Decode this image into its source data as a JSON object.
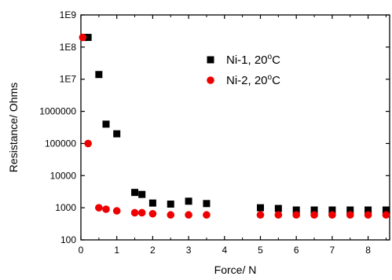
{
  "chart_data": {
    "type": "scatter",
    "title": "",
    "xlabel": "Force/ N",
    "ylabel": "Resistance/ Ohms",
    "xlim": [
      0,
      8.6
    ],
    "ylim": [
      100,
      1000000000
    ],
    "y_scale": "log",
    "grid": false,
    "legend_position": "top-right",
    "x_ticks": [
      {
        "value": 0,
        "label": "0"
      },
      {
        "value": 1,
        "label": "1"
      },
      {
        "value": 2,
        "label": "2"
      },
      {
        "value": 3,
        "label": "3"
      },
      {
        "value": 4,
        "label": "4"
      },
      {
        "value": 5,
        "label": "5"
      },
      {
        "value": 6,
        "label": "6"
      },
      {
        "value": 7,
        "label": "7"
      },
      {
        "value": 8,
        "label": "8"
      }
    ],
    "y_ticks": [
      {
        "value": 100,
        "label": "100"
      },
      {
        "value": 1000,
        "label": "1000"
      },
      {
        "value": 10000,
        "label": "10000"
      },
      {
        "value": 100000,
        "label": "100000"
      },
      {
        "value": 1000000,
        "label": "1000000"
      },
      {
        "value": 10000000,
        "label": "1E7"
      },
      {
        "value": 100000000,
        "label": "1E8"
      },
      {
        "value": 1000000000,
        "label": "1E9"
      }
    ],
    "series": [
      {
        "name": "Ni-1, 20°C",
        "marker": "square",
        "color": "#000000",
        "points": [
          {
            "x": 0.1,
            "y": 200000000
          },
          {
            "x": 0.2,
            "y": 200000000
          },
          {
            "x": 0.5,
            "y": 14000000
          },
          {
            "x": 0.7,
            "y": 400000
          },
          {
            "x": 1.0,
            "y": 200000
          },
          {
            "x": 1.5,
            "y": 3000
          },
          {
            "x": 1.7,
            "y": 2600
          },
          {
            "x": 2.0,
            "y": 1400
          },
          {
            "x": 2.5,
            "y": 1300
          },
          {
            "x": 3.0,
            "y": 1600
          },
          {
            "x": 3.5,
            "y": 1350
          },
          {
            "x": 5.0,
            "y": 1000
          },
          {
            "x": 5.5,
            "y": 950
          },
          {
            "x": 6.0,
            "y": 850
          },
          {
            "x": 6.5,
            "y": 850
          },
          {
            "x": 7.0,
            "y": 850
          },
          {
            "x": 7.5,
            "y": 850
          },
          {
            "x": 8.0,
            "y": 850
          },
          {
            "x": 8.5,
            "y": 850
          }
        ]
      },
      {
        "name": "Ni-2, 20°C",
        "marker": "circle",
        "color": "#ee0000",
        "points": [
          {
            "x": 0.05,
            "y": 200000000
          },
          {
            "x": 0.2,
            "y": 100000
          },
          {
            "x": 0.5,
            "y": 1000
          },
          {
            "x": 0.7,
            "y": 900
          },
          {
            "x": 1.0,
            "y": 800
          },
          {
            "x": 1.5,
            "y": 700
          },
          {
            "x": 1.7,
            "y": 700
          },
          {
            "x": 2.0,
            "y": 650
          },
          {
            "x": 2.5,
            "y": 600
          },
          {
            "x": 3.0,
            "y": 600
          },
          {
            "x": 3.5,
            "y": 600
          },
          {
            "x": 5.0,
            "y": 600
          },
          {
            "x": 5.5,
            "y": 600
          },
          {
            "x": 6.0,
            "y": 600
          },
          {
            "x": 6.5,
            "y": 600
          },
          {
            "x": 7.0,
            "y": 600
          },
          {
            "x": 7.5,
            "y": 600
          },
          {
            "x": 8.0,
            "y": 600
          },
          {
            "x": 8.5,
            "y": 600
          }
        ]
      }
    ]
  }
}
